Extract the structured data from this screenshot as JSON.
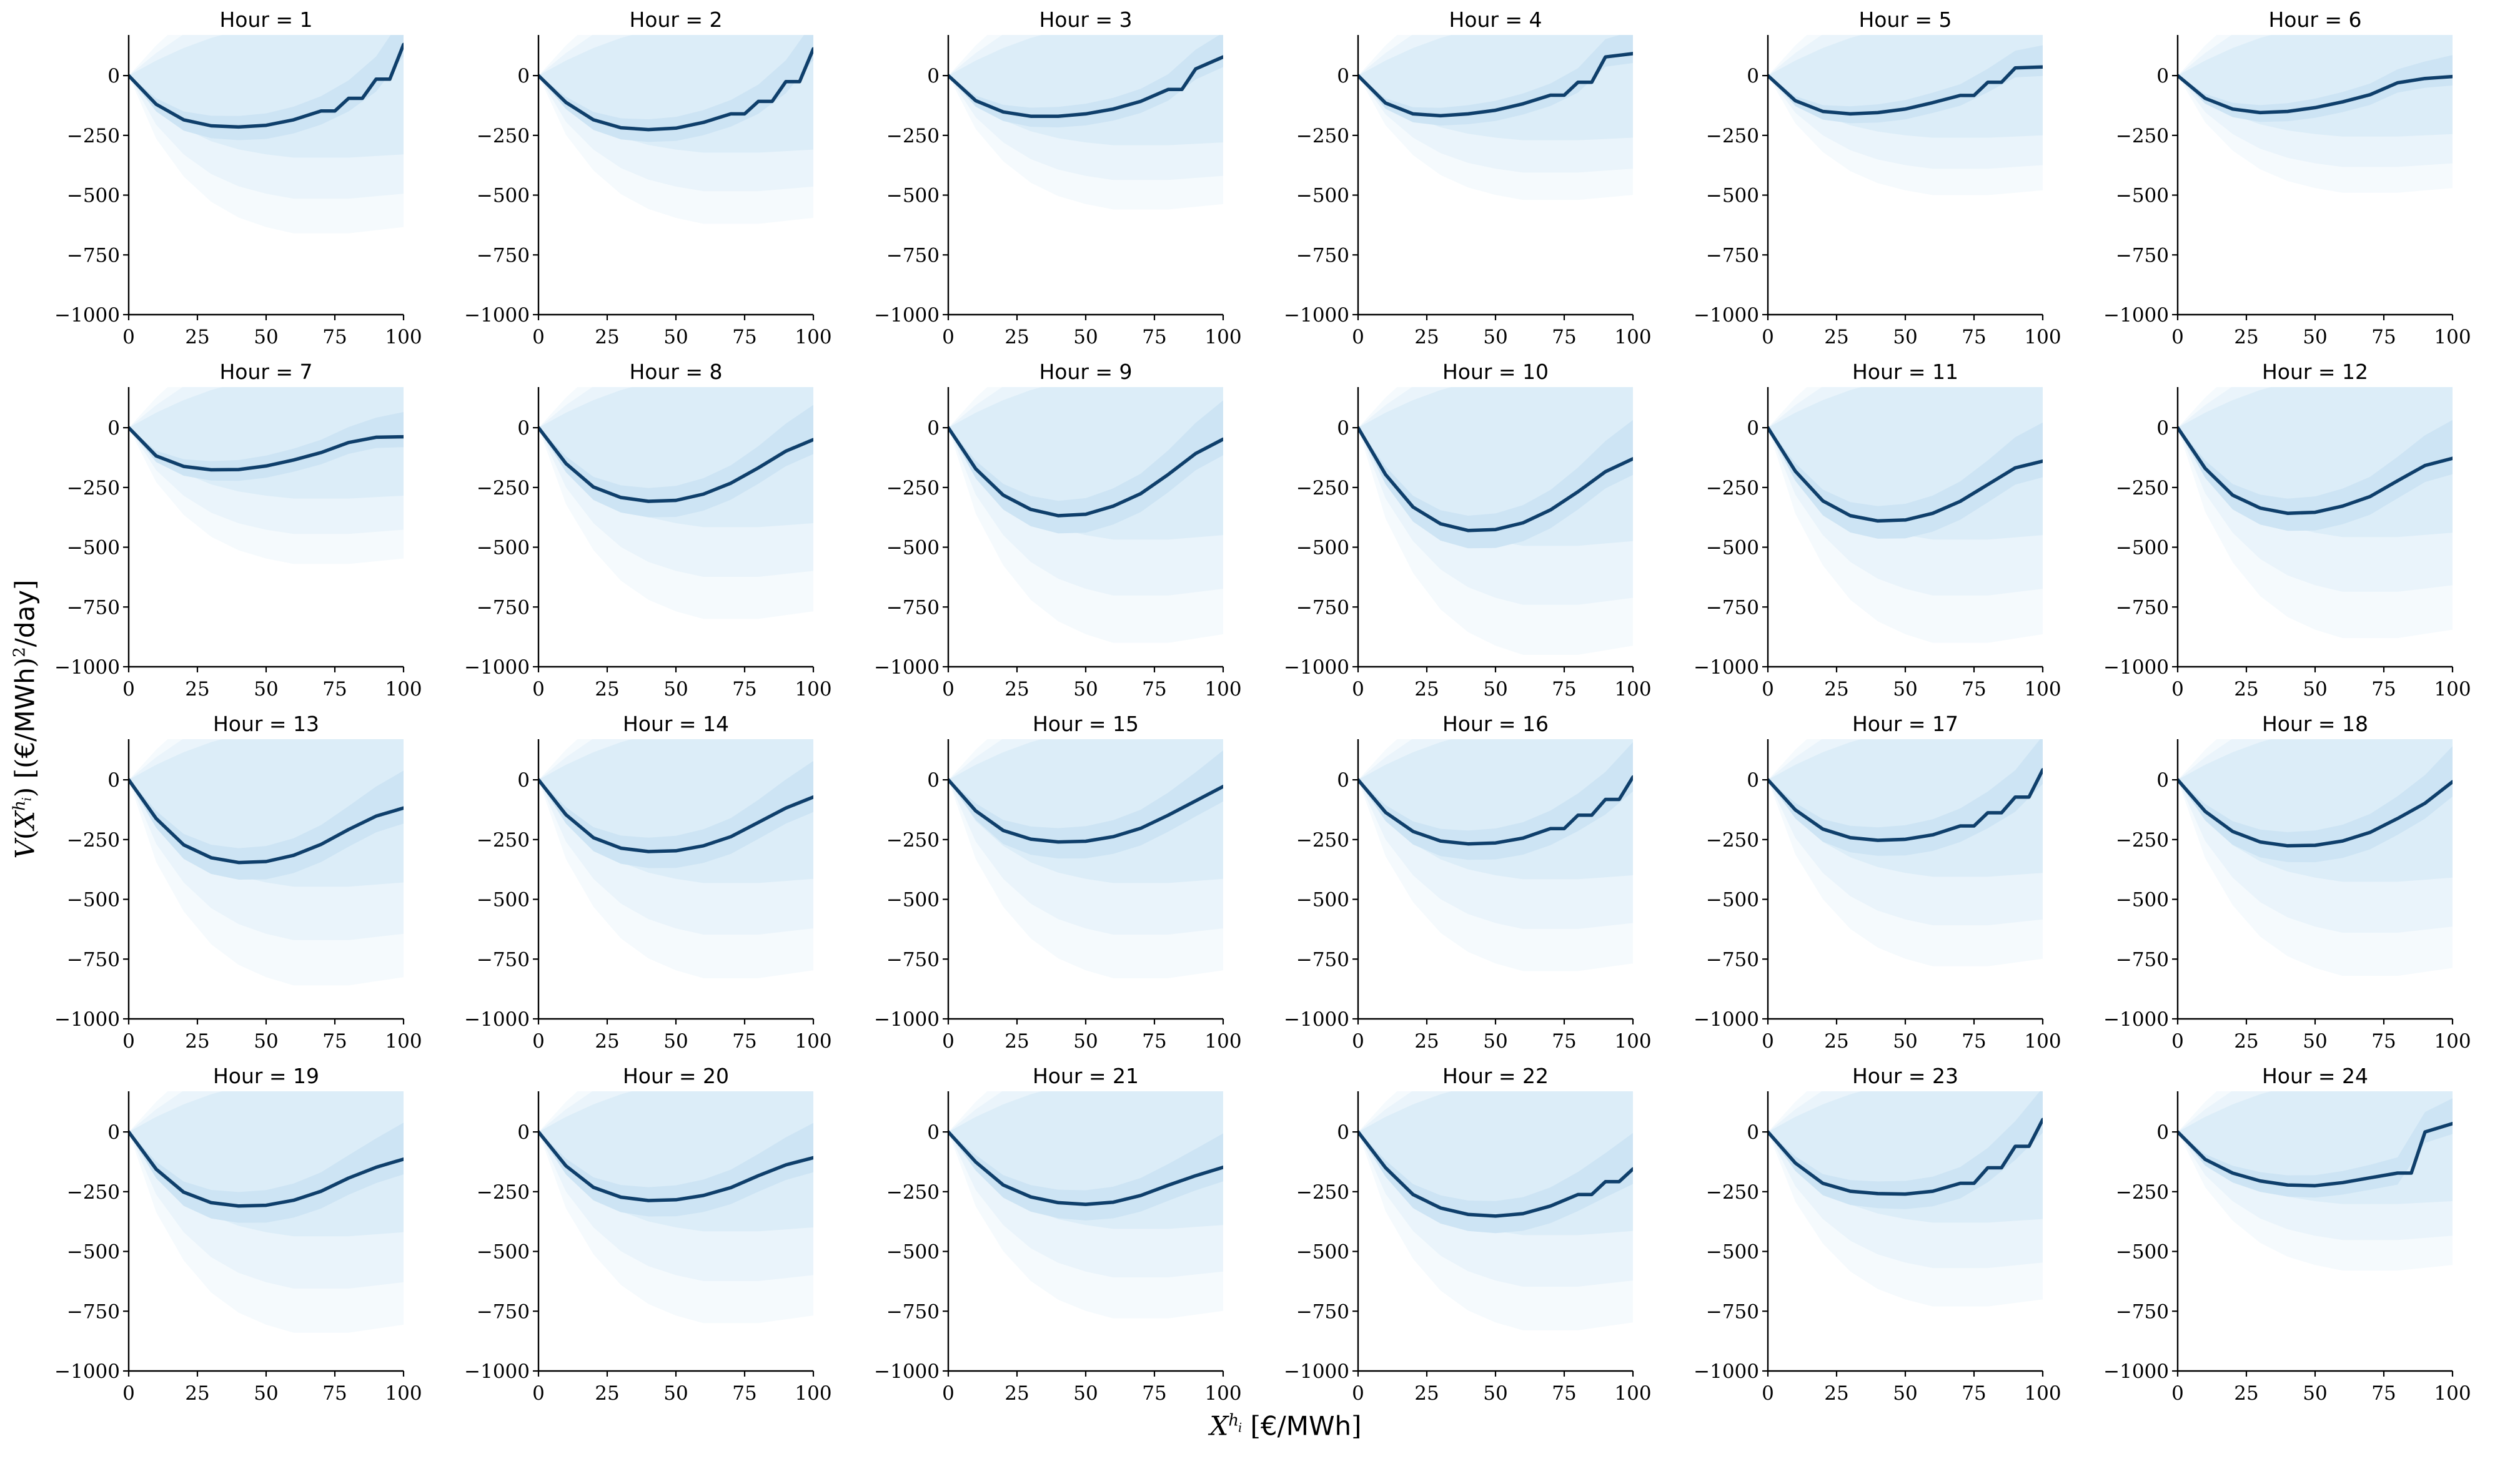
{
  "labels": {
    "ylabel_text": "V(X^{h_i}) [(€/MWh)^2/day]",
    "xlabel_text": "X^{h_i} [€/MWh]",
    "ylabel_parts": [
      {
        "t": "V",
        "f": "it"
      },
      {
        "t": "(",
        "f": "rm"
      },
      {
        "t": "X",
        "f": "it"
      },
      {
        "t": "h",
        "f": "it",
        "v": "sup"
      },
      {
        "t": "i",
        "f": "it",
        "v": "supsub"
      },
      {
        "t": ")",
        "f": "rm"
      },
      {
        "t": " [(",
        "f": "rm"
      },
      {
        "t": "€",
        "f": "sf"
      },
      {
        "t": "/",
        "f": "rm"
      },
      {
        "t": "MWh",
        "f": "sf"
      },
      {
        "t": ")",
        "f": "rm"
      },
      {
        "t": "2",
        "f": "rm",
        "v": "sup"
      },
      {
        "t": "/",
        "f": "rm"
      },
      {
        "t": "day",
        "f": "sf"
      },
      {
        "t": "]",
        "f": "rm"
      }
    ],
    "xlabel_parts": [
      {
        "t": "X",
        "f": "it"
      },
      {
        "t": "h",
        "f": "it",
        "v": "sup"
      },
      {
        "t": "i",
        "f": "it",
        "v": "supsub"
      },
      {
        "t": " [",
        "f": "rm"
      },
      {
        "t": "€",
        "f": "sf"
      },
      {
        "t": "/",
        "f": "rm"
      },
      {
        "t": "MWh",
        "f": "sf"
      },
      {
        "t": "]",
        "f": "rm"
      }
    ]
  },
  "chart_data": {
    "type": "line",
    "layout": {
      "rows": 4,
      "cols": 6,
      "grid": false,
      "legend": "none"
    },
    "title": "",
    "xlabel": "X^{h_i} [€/MWh]",
    "ylabel": "V(X^{h_i}) [(€/MWh)^2/day]",
    "xlim": [
      0,
      100
    ],
    "ylim": [
      -1000,
      170
    ],
    "xticks": [
      0,
      25,
      50,
      75,
      100
    ],
    "yticks": [
      0,
      -250,
      -500,
      -750,
      -1000
    ],
    "xticklabels": [
      "0",
      "25",
      "50",
      "75",
      "100"
    ],
    "yticklabels": [
      "0",
      "−250",
      "−500",
      "−750",
      "−1000"
    ],
    "x": [
      0,
      10,
      20,
      30,
      40,
      50,
      60,
      70,
      80,
      90,
      100
    ],
    "colors": {
      "line": "#0f3f6b",
      "bands_inner_to_outer": [
        "#cde4f4",
        "#dcedf8",
        "#eaf4fb",
        "#f5fafd"
      ],
      "spine": "#000000",
      "background": "#ffffff"
    },
    "band_model": {
      "comment": "Nested uncertainty fan. Outer 3 bands anchored at (0,0): lo=-depth*frac_lo*shape_lo, hi=top_mag*frac_hi*shape_hi (clipped to ylim). Inner band = median ± width*wf, wf=clamp(depth/660,0.75,1.35).",
      "shape_lo": [
        0,
        0.4,
        0.64,
        0.8,
        0.9,
        0.96,
        1.0,
        1.0,
        1.0,
        0.98,
        0.96
      ],
      "shape_hi": [
        0,
        0.3,
        0.55,
        0.75,
        0.9,
        1.0,
        1.0,
        1.0,
        1.0,
        1.0,
        1.0
      ],
      "frac_lo": [
        1.0,
        0.78,
        0.52
      ],
      "frac_hi": [
        1.0,
        0.75,
        0.5
      ],
      "top_mag": 420,
      "inner_w_lo": [
        3,
        30,
        45,
        52,
        55,
        57,
        57,
        57,
        55,
        52,
        50
      ],
      "inner_w_hi": [
        3,
        25,
        35,
        42,
        46,
        50,
        55,
        62,
        75,
        95,
        120
      ]
    },
    "subplots": [
      {
        "hour": 1,
        "title": "Hour = 1",
        "median": [
          0,
          -120,
          -185,
          -210,
          -215,
          -208,
          -185,
          -148,
          -95,
          -15,
          130
        ],
        "band_depth": 660,
        "steps": true
      },
      {
        "hour": 2,
        "title": "Hour = 2",
        "median": [
          0,
          -112,
          -185,
          -218,
          -226,
          -220,
          -196,
          -160,
          -108,
          -25,
          112
        ],
        "band_depth": 620,
        "steps": true
      },
      {
        "hour": 3,
        "title": "Hour = 3",
        "median": [
          0,
          -105,
          -152,
          -170,
          -170,
          -160,
          -140,
          -108,
          -58,
          28,
          78
        ],
        "band_depth": 560,
        "steps": true
      },
      {
        "hour": 4,
        "title": "Hour = 4",
        "median": [
          0,
          -115,
          -160,
          -168,
          -160,
          -145,
          -118,
          -82,
          -28,
          78,
          92
        ],
        "band_depth": 520,
        "steps": true
      },
      {
        "hour": 5,
        "title": "Hour = 5",
        "median": [
          0,
          -105,
          -150,
          -160,
          -155,
          -140,
          -113,
          -83,
          -28,
          32,
          36
        ],
        "band_depth": 500,
        "steps": true
      },
      {
        "hour": 6,
        "title": "Hour = 6",
        "median": [
          0,
          -95,
          -140,
          -155,
          -150,
          -134,
          -110,
          -80,
          -30,
          -12,
          -4
        ],
        "band_depth": 490,
        "steps": true
      },
      {
        "hour": 7,
        "title": "Hour = 7",
        "median": [
          0,
          -118,
          -162,
          -176,
          -175,
          -160,
          -135,
          -104,
          -62,
          -40,
          -38
        ],
        "band_depth": 570,
        "steps": true
      },
      {
        "hour": 8,
        "title": "Hour = 8",
        "median": [
          0,
          -150,
          -248,
          -292,
          -308,
          -304,
          -278,
          -232,
          -168,
          -98,
          -50
        ],
        "band_depth": 800,
        "steps": false
      },
      {
        "hour": 9,
        "title": "Hour = 9",
        "median": [
          0,
          -172,
          -282,
          -342,
          -368,
          -362,
          -328,
          -276,
          -196,
          -108,
          -48
        ],
        "band_depth": 900,
        "steps": false
      },
      {
        "hour": 10,
        "title": "Hour = 10",
        "median": [
          0,
          -196,
          -332,
          -402,
          -430,
          -426,
          -398,
          -344,
          -268,
          -184,
          -130
        ],
        "band_depth": 950,
        "steps": false
      },
      {
        "hour": 11,
        "title": "Hour = 11",
        "median": [
          0,
          -182,
          -306,
          -368,
          -390,
          -386,
          -358,
          -308,
          -238,
          -168,
          -140
        ],
        "band_depth": 900,
        "steps": false
      },
      {
        "hour": 12,
        "title": "Hour = 12",
        "median": [
          0,
          -170,
          -282,
          -336,
          -358,
          -354,
          -328,
          -288,
          -222,
          -158,
          -128
        ],
        "band_depth": 880,
        "steps": false
      },
      {
        "hour": 13,
        "title": "Hour = 13",
        "median": [
          0,
          -162,
          -272,
          -326,
          -346,
          -342,
          -316,
          -270,
          -208,
          -152,
          -118
        ],
        "band_depth": 860,
        "steps": false
      },
      {
        "hour": 14,
        "title": "Hour = 14",
        "median": [
          0,
          -146,
          -242,
          -286,
          -300,
          -297,
          -276,
          -238,
          -178,
          -118,
          -72
        ],
        "band_depth": 830,
        "steps": false
      },
      {
        "hour": 15,
        "title": "Hour = 15",
        "median": [
          0,
          -130,
          -212,
          -248,
          -260,
          -257,
          -238,
          -203,
          -148,
          -88,
          -28
        ],
        "band_depth": 830,
        "steps": false
      },
      {
        "hour": 16,
        "title": "Hour = 16",
        "median": [
          0,
          -136,
          -216,
          -256,
          -268,
          -264,
          -244,
          -204,
          -148,
          -82,
          12
        ],
        "band_depth": 800,
        "steps": true
      },
      {
        "hour": 17,
        "title": "Hour = 17",
        "median": [
          0,
          -126,
          -206,
          -242,
          -253,
          -249,
          -230,
          -193,
          -138,
          -72,
          42
        ],
        "band_depth": 780,
        "steps": true
      },
      {
        "hour": 18,
        "title": "Hour = 18",
        "median": [
          0,
          -132,
          -216,
          -260,
          -276,
          -274,
          -256,
          -220,
          -162,
          -98,
          -8
        ],
        "band_depth": 820,
        "steps": false
      },
      {
        "hour": 19,
        "title": "Hour = 19",
        "median": [
          0,
          -156,
          -252,
          -296,
          -310,
          -307,
          -286,
          -248,
          -193,
          -148,
          -114
        ],
        "band_depth": 840,
        "steps": false
      },
      {
        "hour": 20,
        "title": "Hour = 20",
        "median": [
          0,
          -142,
          -232,
          -273,
          -287,
          -284,
          -266,
          -233,
          -183,
          -138,
          -108
        ],
        "band_depth": 800,
        "steps": false
      },
      {
        "hour": 21,
        "title": "Hour = 21",
        "median": [
          0,
          -126,
          -222,
          -272,
          -296,
          -303,
          -294,
          -266,
          -223,
          -183,
          -148
        ],
        "band_depth": 780,
        "steps": false
      },
      {
        "hour": 22,
        "title": "Hour = 22",
        "median": [
          0,
          -150,
          -262,
          -318,
          -345,
          -352,
          -342,
          -310,
          -262,
          -208,
          -155
        ],
        "band_depth": 830,
        "steps": true
      },
      {
        "hour": 23,
        "title": "Hour = 23",
        "median": [
          0,
          -130,
          -215,
          -248,
          -258,
          -260,
          -248,
          -215,
          -150,
          -60,
          52
        ],
        "band_depth": 730,
        "steps": true
      },
      {
        "hour": 24,
        "title": "Hour = 24",
        "median": [
          0,
          -115,
          -172,
          -205,
          -222,
          -225,
          -212,
          -192,
          -172,
          0,
          35
        ],
        "band_depth": 580,
        "steps": true
      }
    ]
  }
}
